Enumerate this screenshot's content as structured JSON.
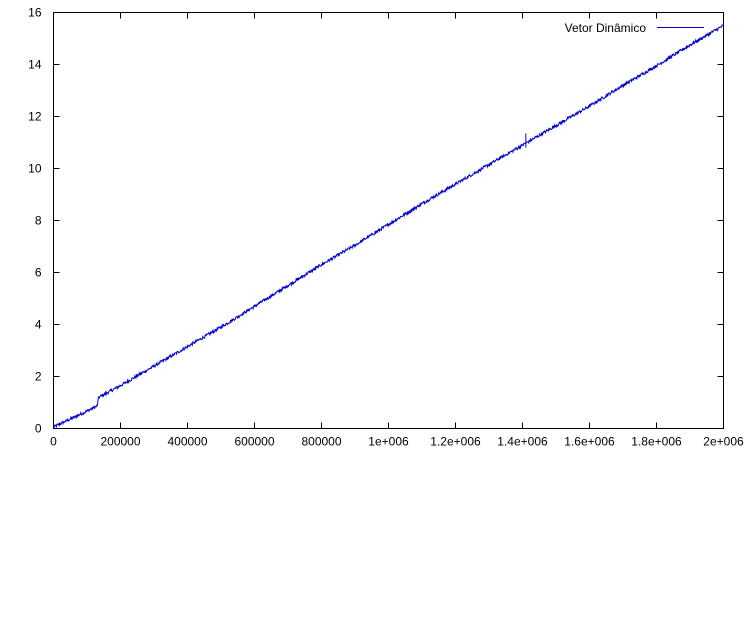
{
  "chart_data": {
    "type": "line",
    "title": "",
    "xlabel": "",
    "ylabel": "",
    "xlim": [
      0,
      2000000
    ],
    "ylim": [
      0,
      16
    ],
    "x_ticks": [
      0,
      200000,
      400000,
      600000,
      800000,
      1000000,
      1200000,
      1400000,
      1600000,
      1800000,
      2000000
    ],
    "x_tick_labels": [
      "0",
      "200000",
      "400000",
      "600000",
      "800000",
      "1e+006",
      "1.2e+006",
      "1.4e+006",
      "1.6e+006",
      "1.8e+006",
      "2e+006"
    ],
    "y_ticks": [
      0,
      2,
      4,
      6,
      8,
      10,
      12,
      14,
      16
    ],
    "y_tick_labels": [
      "0",
      "2",
      "4",
      "6",
      "8",
      "10",
      "12",
      "14",
      "16"
    ],
    "grid": false,
    "legend_position": "top-right",
    "series": [
      {
        "name": "Vetor Dinâmico",
        "color": "#0000cc",
        "x": [
          0,
          20000,
          40000,
          60000,
          80000,
          100000,
          120000,
          130000,
          135000,
          150000,
          200000,
          300000,
          400000,
          500000,
          600000,
          700000,
          800000,
          900000,
          1000000,
          1100000,
          1200000,
          1300000,
          1400000,
          1500000,
          1600000,
          1700000,
          1800000,
          1900000,
          2000000
        ],
        "y": [
          0.05,
          0.18,
          0.3,
          0.42,
          0.55,
          0.67,
          0.8,
          0.87,
          1.2,
          1.3,
          1.65,
          2.4,
          3.15,
          3.9,
          4.7,
          5.5,
          6.3,
          7.05,
          7.85,
          8.65,
          9.4,
          10.15,
          10.9,
          11.65,
          12.4,
          13.2,
          13.95,
          14.75,
          15.5
        ]
      }
    ],
    "annotations": [
      {
        "x": 1410000,
        "y_low": 10.8,
        "y_high": 11.35
      }
    ]
  }
}
